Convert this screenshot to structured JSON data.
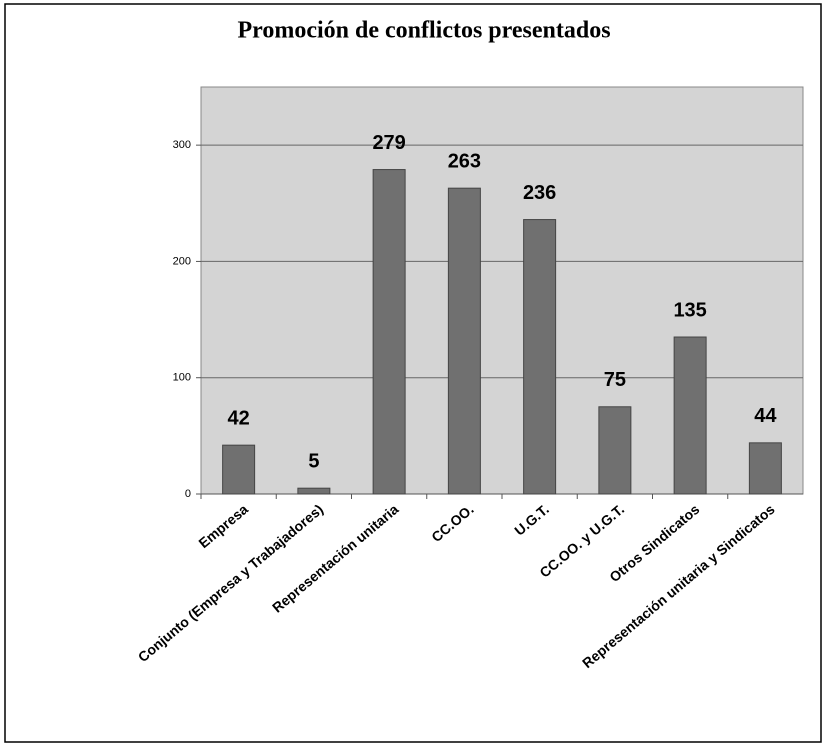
{
  "chart_data": {
    "type": "bar",
    "title": "Promoción de conflictos presentados",
    "categories": [
      "Empresa",
      "Conjunto (Empresa y Trabajadores)",
      "Representación unitaria",
      "CC.OO.",
      "U.G.T.",
      "CC.OO. y U.G.T.",
      "Otros Sindicatos",
      "Representación unitaria y Sindicatos"
    ],
    "values": [
      42,
      5,
      279,
      263,
      236,
      75,
      135,
      44
    ],
    "color": "#707070",
    "ylim": [
      0,
      350
    ],
    "yticks": [
      0,
      100,
      200,
      300
    ],
    "grid": true,
    "show_value_labels": true
  }
}
